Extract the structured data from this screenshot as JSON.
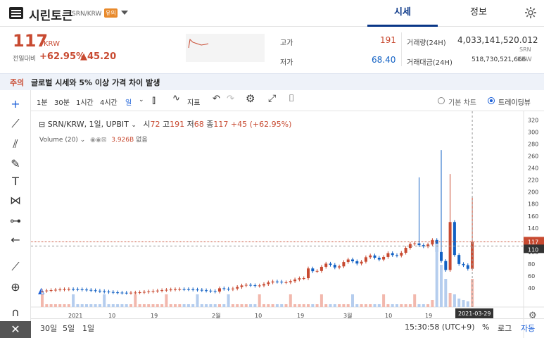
{
  "header": {
    "coin_name": "시린토큰",
    "pair": "SRN/KRW",
    "badge": "유의",
    "tab_market": "시세",
    "tab_info": "정보"
  },
  "ticker": {
    "price": "117",
    "unit": "KRW",
    "change_label": "전일대비",
    "change_pct": "+62.95%",
    "change_amt": "▲45.20",
    "high_label": "고가",
    "high": "191",
    "low_label": "저가",
    "low": "68.40",
    "vol_label": "거래량(24H)",
    "vol": "4,033,141,520.012",
    "vol_unit": "SRN",
    "amt_label": "거래대금(24H)",
    "amt": "518,730,521,666",
    "amt_unit": "KRW"
  },
  "notice": {
    "tag": "주의",
    "text": "글로벌 시세와 5% 이상 가격 차이 발생"
  },
  "toolbar": {
    "intervals": [
      "1분",
      "30분",
      "1시간",
      "4시간",
      "일"
    ],
    "indicator": "지표",
    "basic_chart": "기본 차트",
    "trading_view": "트레이딩뷰"
  },
  "chart": {
    "legend_title": "SRN/KRW, 1일, UPBIT",
    "open_label": "시",
    "open": "72",
    "high_label": "고",
    "high": "191",
    "low_label": "저",
    "low": "68",
    "close_label": "종",
    "close": "117",
    "change": "+45 (+62.95%)",
    "volume_label": "Volume (20)",
    "volume_val": "3.926B",
    "volume_none": "없음",
    "last_price_tag": "117",
    "cross_price_tag": "110",
    "cross_date_tag": "2021-03-29"
  },
  "chart_data": {
    "type": "candlestick",
    "y_ticks": [
      40,
      60,
      80,
      100,
      120,
      140,
      160,
      180,
      200,
      220,
      240,
      260,
      280,
      300,
      320
    ],
    "x_ticks": [
      "2021",
      "10",
      "19",
      "2월",
      "10",
      "19",
      "3월",
      "10",
      "19"
    ],
    "ylim": [
      20,
      330
    ]
  },
  "bottom": {
    "ranges": [
      "30일",
      "5일",
      "1일"
    ],
    "time": "15:30:58 (UTC+9)",
    "pct": "%",
    "log": "로그",
    "auto": "자동"
  },
  "colors": {
    "up": "#c84a31",
    "down": "#1261c4",
    "accent": "#093687"
  }
}
